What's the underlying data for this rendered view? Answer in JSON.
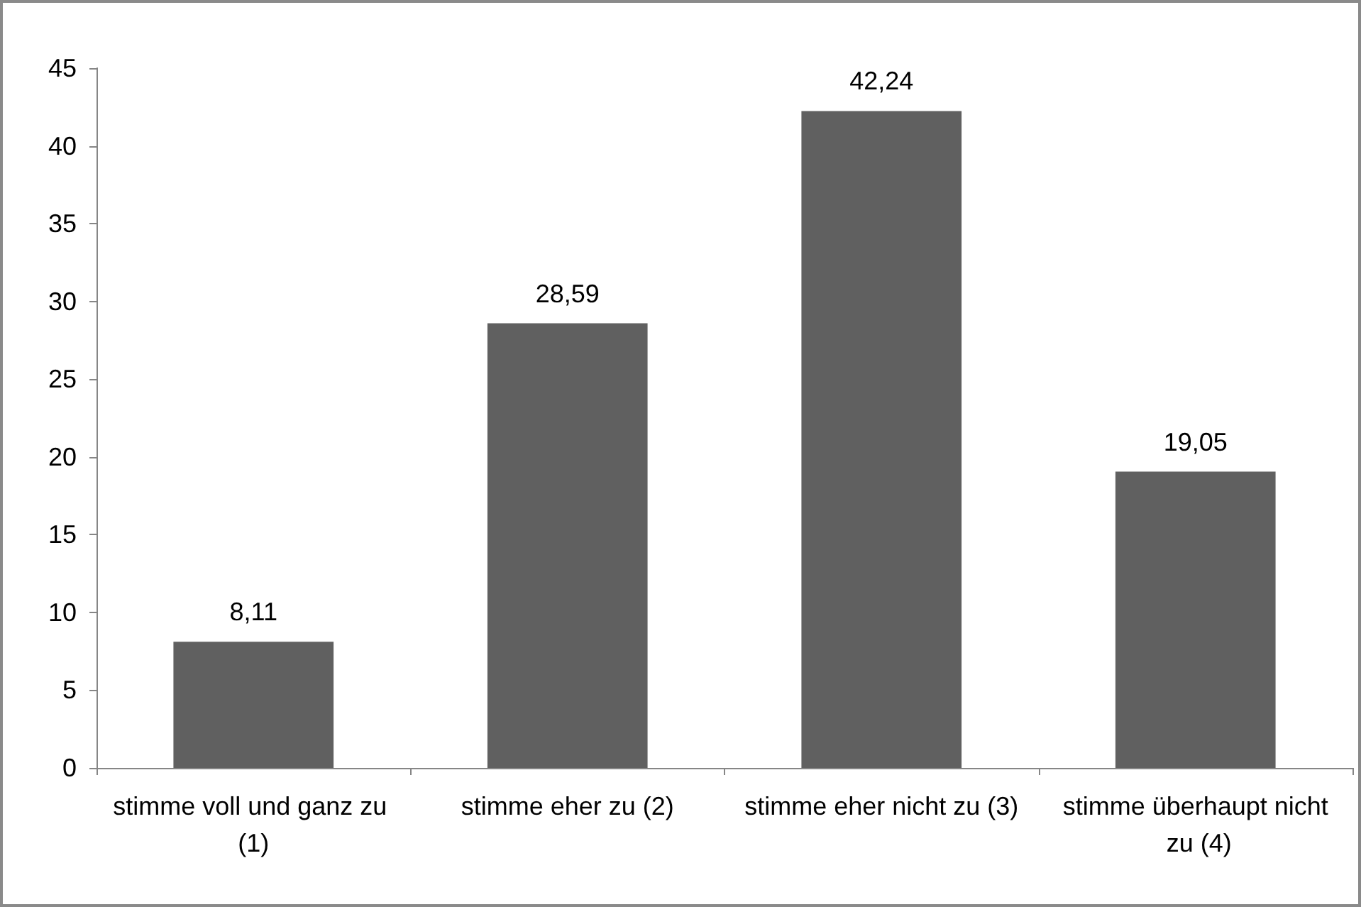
{
  "chart_data": {
    "type": "bar",
    "categories": [
      "stimme voll und ganz zu (1)",
      "stimme eher zu (2)",
      "stimme eher nicht zu (3)",
      "stimme überhaupt nicht zu (4)"
    ],
    "values": [
      8.11,
      28.59,
      42.24,
      19.05
    ],
    "value_labels": [
      "8,11",
      "28,59",
      "42,24",
      "19,05"
    ],
    "color": "#606060",
    "ylim": [
      0,
      45
    ],
    "yticks": [
      0,
      5,
      10,
      15,
      20,
      25,
      30,
      35,
      40,
      45
    ],
    "grid": false
  }
}
